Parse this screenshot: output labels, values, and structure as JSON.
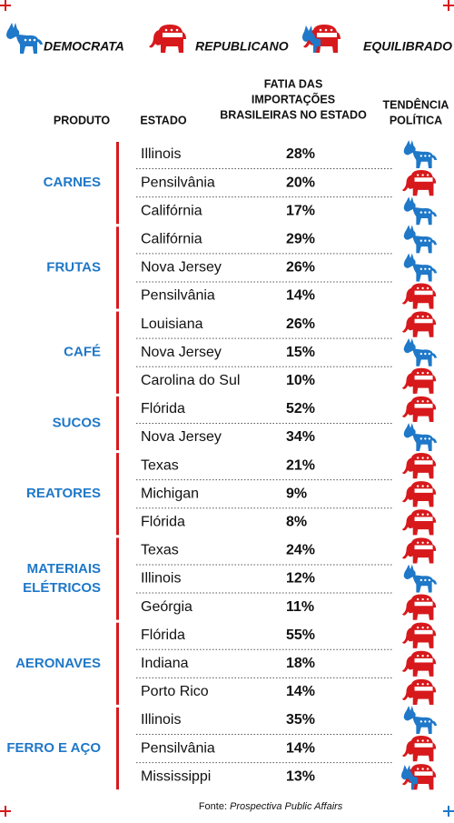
{
  "legend": [
    "DEMOCRATA",
    "REPUBLICANO",
    "EQUILIBRADO"
  ],
  "header": {
    "product": "PRODUTO",
    "state": "ESTADO",
    "share": [
      "FATIA DAS",
      "IMPORTAÇÕES",
      "BRASILEIRAS NO ESTADO"
    ],
    "tendency": [
      "TENDÊNCIA",
      "POLÍTICA"
    ]
  },
  "groups": [
    {
      "product": [
        "CARNES"
      ],
      "rows": [
        {
          "state": "Illinois",
          "share": "28%",
          "tendency": "DEMOCRATA"
        },
        {
          "state": "Pensilvânia",
          "share": "20%",
          "tendency": "REPUBLICANO"
        },
        {
          "state": "Califórnia",
          "share": "17%",
          "tendency": "DEMOCRATA"
        }
      ]
    },
    {
      "product": [
        "FRUTAS"
      ],
      "rows": [
        {
          "state": "Califórnia",
          "share": "29%",
          "tendency": "DEMOCRATA"
        },
        {
          "state": "Nova Jersey",
          "share": "26%",
          "tendency": "DEMOCRATA"
        },
        {
          "state": "Pensilvânia",
          "share": "14%",
          "tendency": "REPUBLICANO"
        }
      ]
    },
    {
      "product": [
        "CAFÉ"
      ],
      "rows": [
        {
          "state": "Louisiana",
          "share": "26%",
          "tendency": "REPUBLICANO"
        },
        {
          "state": "Nova Jersey",
          "share": "15%",
          "tendency": "DEMOCRATA"
        },
        {
          "state": "Carolina do Sul",
          "share": "10%",
          "tendency": "REPUBLICANO"
        }
      ]
    },
    {
      "product": [
        "SUCOS"
      ],
      "rows": [
        {
          "state": "Flórida",
          "share": "52%",
          "tendency": "REPUBLICANO"
        },
        {
          "state": "Nova Jersey",
          "share": "34%",
          "tendency": "DEMOCRATA"
        }
      ]
    },
    {
      "product": [
        "REATORES"
      ],
      "rows": [
        {
          "state": "Texas",
          "share": "21%",
          "tendency": "REPUBLICANO"
        },
        {
          "state": "Michigan",
          "share": "9%",
          "tendency": "REPUBLICANO"
        },
        {
          "state": "Flórida",
          "share": "8%",
          "tendency": "REPUBLICANO"
        }
      ]
    },
    {
      "product": [
        "MATERIAIS",
        "ELÉTRICOS"
      ],
      "rows": [
        {
          "state": "Texas",
          "share": "24%",
          "tendency": "REPUBLICANO"
        },
        {
          "state": "Illinois",
          "share": "12%",
          "tendency": "DEMOCRATA"
        },
        {
          "state": "Geórgia",
          "share": "11%",
          "tendency": "REPUBLICANO"
        }
      ]
    },
    {
      "product": [
        "AERONAVES"
      ],
      "rows": [
        {
          "state": "Flórida",
          "share": "55%",
          "tendency": "REPUBLICANO"
        },
        {
          "state": "Indiana",
          "share": "18%",
          "tendency": "REPUBLICANO"
        },
        {
          "state": "Porto Rico",
          "share": "14%",
          "tendency": "REPUBLICANO"
        }
      ]
    },
    {
      "product": [
        "FERRO E AÇO"
      ],
      "rows": [
        {
          "state": "Illinois",
          "share": "35%",
          "tendency": "DEMOCRATA"
        },
        {
          "state": "Pensilvânia",
          "share": "14%",
          "tendency": "REPUBLICANO"
        },
        {
          "state": "Mississippi",
          "share": "13%",
          "tendency": "EQUILIBRADO"
        }
      ]
    }
  ],
  "source": {
    "prefix": "Fonte:",
    "name": "Prospectiva Public Affairs"
  }
}
